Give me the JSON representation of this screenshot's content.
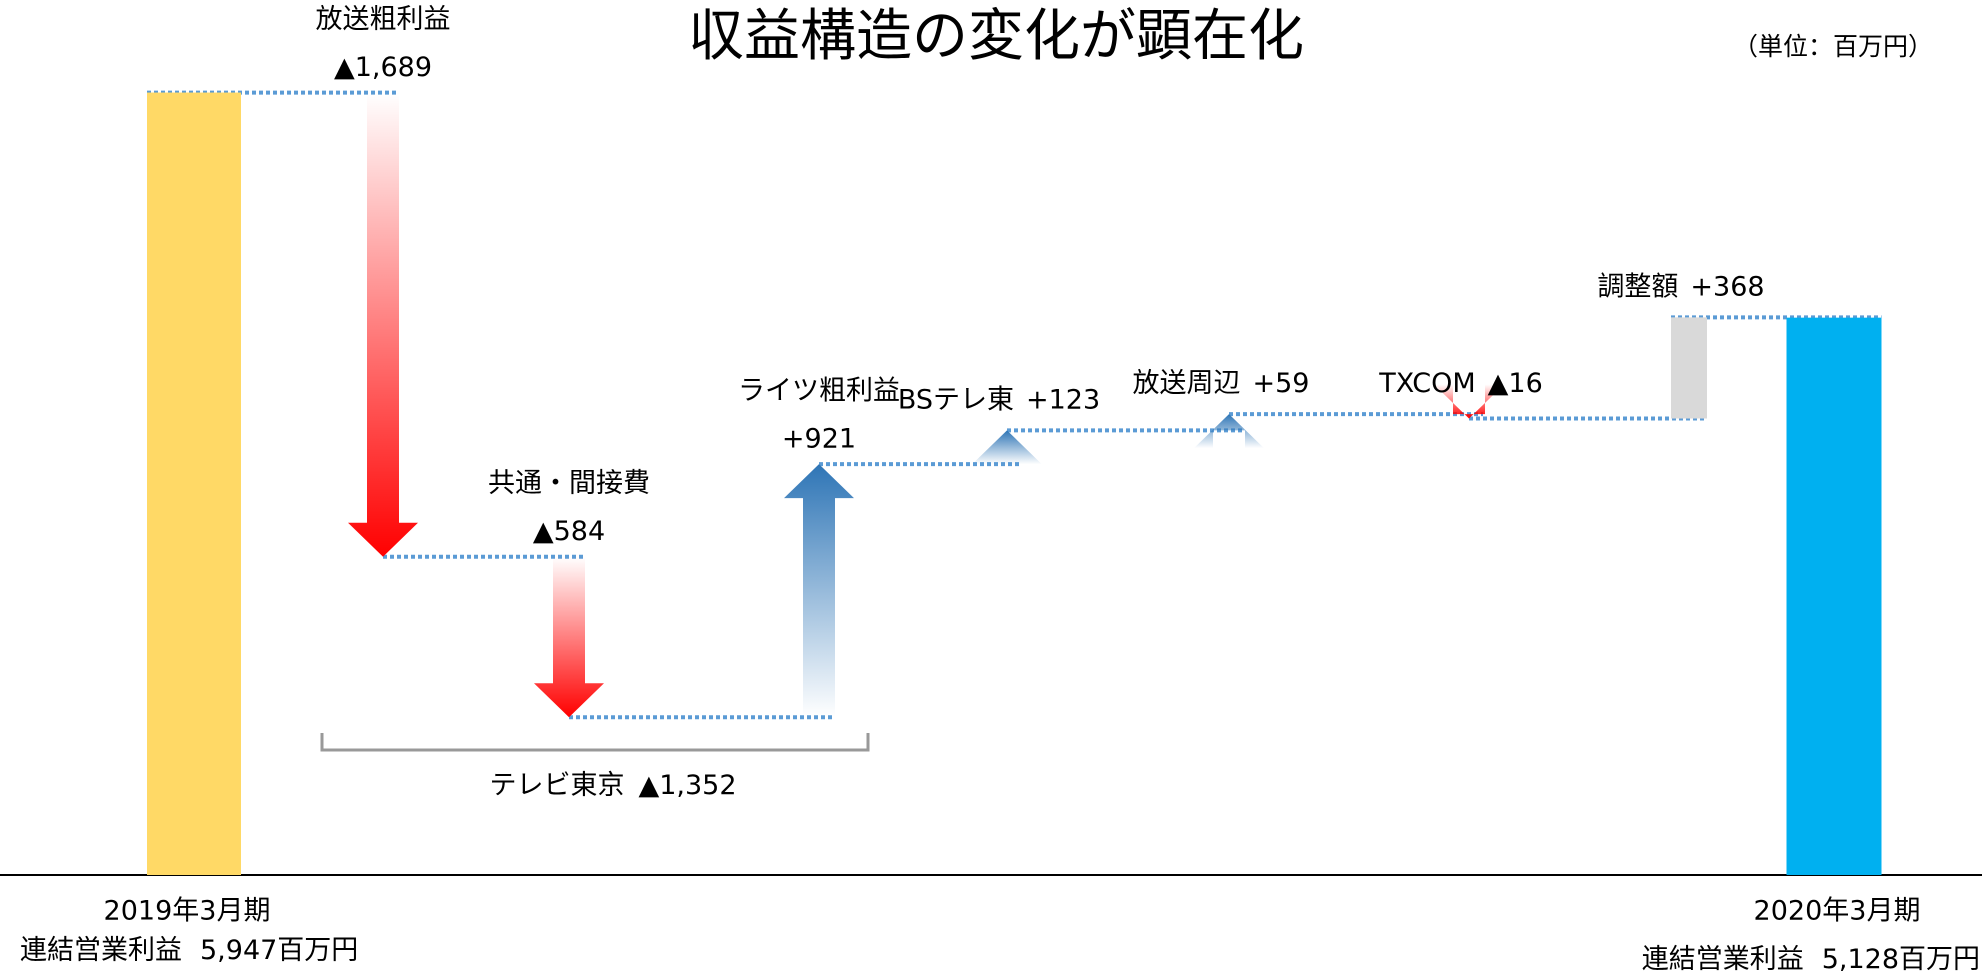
{
  "chart_data": {
    "type": "waterfall",
    "title": "収益構造の変化が顕在化",
    "unit_label": "（単位：百万円）",
    "categories": [
      "2019年3月期",
      "放送粗利益",
      "共通・間接費",
      "ライツ粗利益",
      "BSテレ東",
      "放送周辺",
      "TXCOM",
      "調整額",
      "2020年3月期"
    ],
    "values": [
      5947,
      -1689,
      -584,
      921,
      123,
      59,
      -16,
      368,
      5128
    ],
    "value_labels": [
      "5,947百万円",
      "▲1,689",
      "▲584",
      "+921",
      "+123",
      "+59",
      "▲16",
      "+368",
      "5,128百万円"
    ],
    "total_label": "連結営業利益",
    "shapes": [
      "total",
      "arrow",
      "arrow",
      "arrow",
      "arrow",
      "arrow",
      "arrow",
      "bar",
      "total"
    ],
    "colors": [
      "#FFD966",
      "#FF0000",
      "#FF0000",
      "#2E75B6",
      "#2E75B6",
      "#2E75B6",
      "#FF0000",
      "#D9D9D9",
      "#00B0F0"
    ],
    "connector_color": "#5B9BD5",
    "annotation": {
      "text": "テレビ東京",
      "value": -1352,
      "value_label": "▲1,352"
    },
    "ylim": [
      3100,
      6000
    ]
  }
}
